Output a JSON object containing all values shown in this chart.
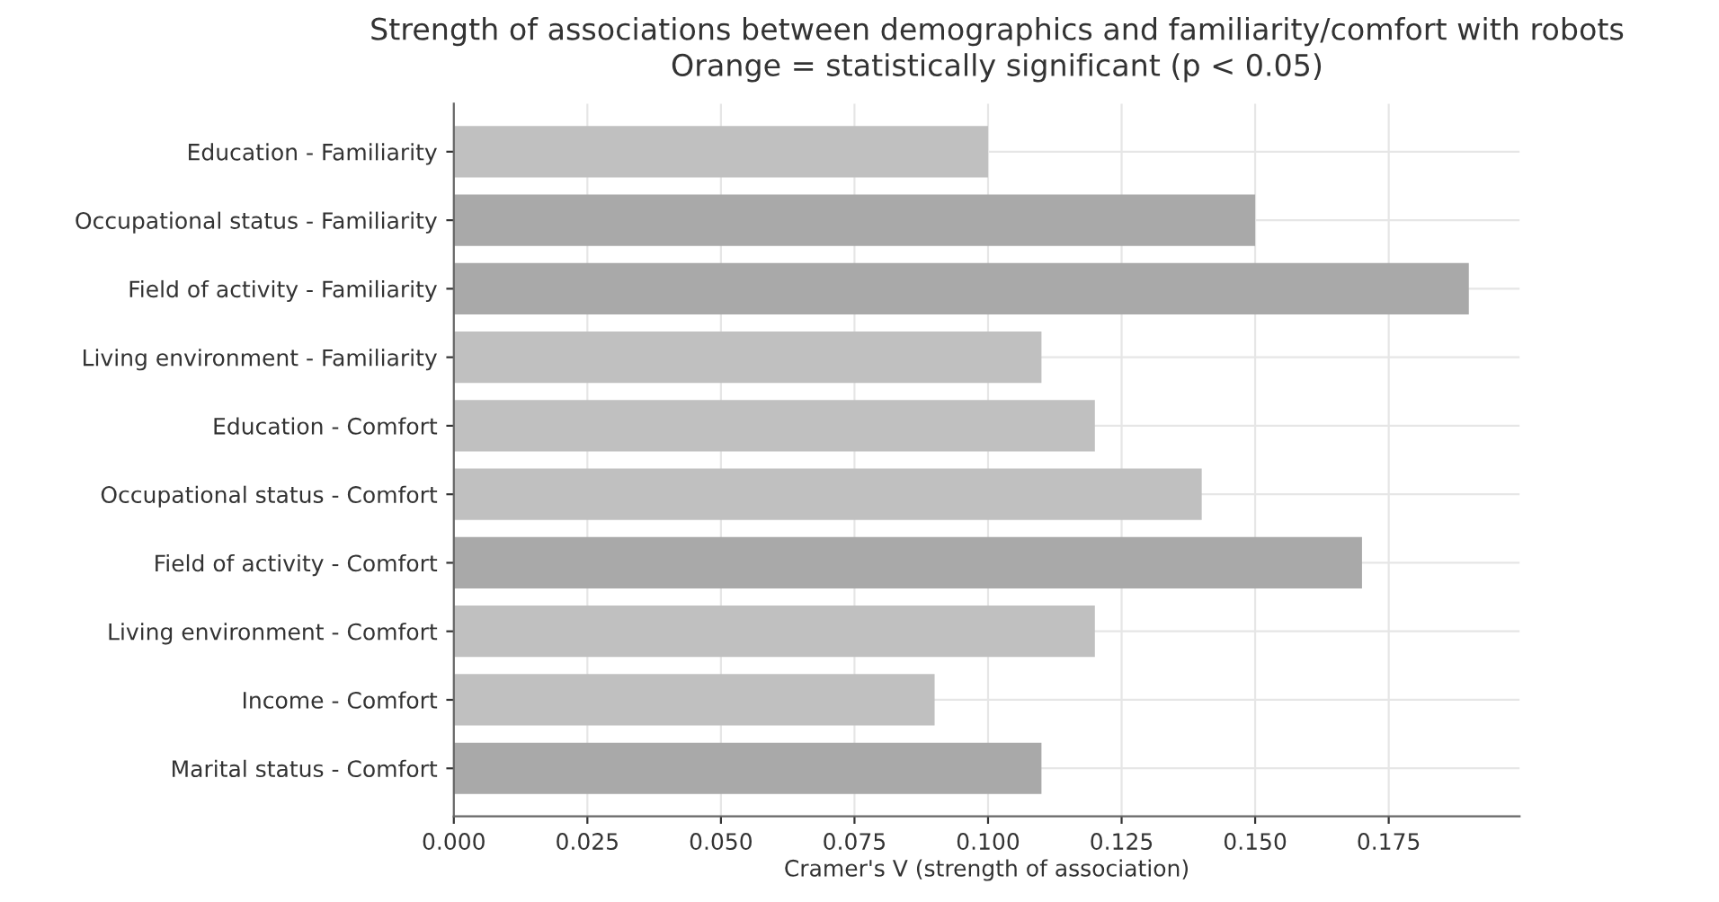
{
  "chart_data": {
    "type": "bar",
    "orientation": "horizontal",
    "title": "Strength of associations between demographics and familiarity/comfort with robots",
    "subtitle": "Orange = statistically significant (p < 0.05)",
    "xlabel": "Cramer's V (strength of association)",
    "categories": [
      "Education - Familiarity",
      "Occupational status - Familiarity",
      "Field of activity - Familiarity",
      "Living environment - Familiarity",
      "Education - Comfort",
      "Occupational status - Comfort",
      "Field of activity - Comfort",
      "Living environment - Comfort",
      "Income - Comfort",
      "Marital status - Comfort"
    ],
    "values": [
      0.1,
      0.15,
      0.19,
      0.11,
      0.12,
      0.14,
      0.17,
      0.12,
      0.09,
      0.11
    ],
    "colors": [
      "#c0c0c0",
      "#a9a9a9",
      "#a9a9a9",
      "#c0c0c0",
      "#c0c0c0",
      "#c0c0c0",
      "#a9a9a9",
      "#c0c0c0",
      "#c0c0c0",
      "#a9a9a9"
    ],
    "xlim": [
      0,
      0.1995
    ],
    "xticks": [
      {
        "value": 0,
        "label": "0.000"
      },
      {
        "value": 0.025,
        "label": "0.025"
      },
      {
        "value": 0.05,
        "label": "0.050"
      },
      {
        "value": 0.075,
        "label": "0.075"
      },
      {
        "value": 0.1,
        "label": "0.100"
      },
      {
        "value": 0.125,
        "label": "0.125"
      },
      {
        "value": 0.15,
        "label": "0.150"
      },
      {
        "value": 0.175,
        "label": "0.175"
      }
    ],
    "grid": true,
    "legend": false
  }
}
